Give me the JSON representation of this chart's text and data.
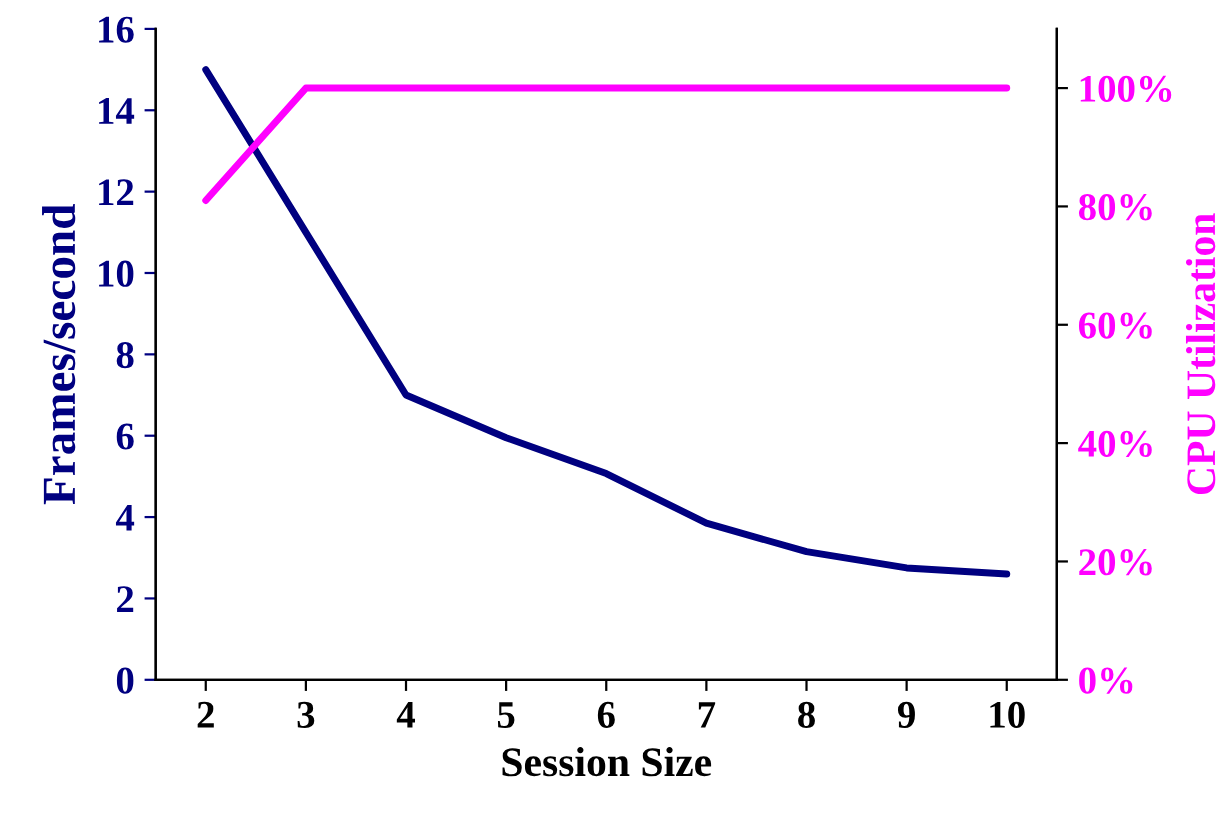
{
  "chart_data": {
    "type": "line",
    "xlabel": "Session Size",
    "ylabel": "Frames/second",
    "y2label": "CPU Utilization",
    "categories": [
      "2",
      "3",
      "4",
      "5",
      "6",
      "7",
      "8",
      "9",
      "10"
    ],
    "series": [
      {
        "color": "#000080",
        "values": [
          15.0,
          11.0,
          7.0,
          5.95,
          5.07,
          3.85,
          3.15,
          2.75,
          2.6
        ]
      },
      {
        "color": "#ff00ff",
        "axis": "y2",
        "values": [
          81,
          100,
          100,
          100,
          100,
          100,
          100,
          100,
          100
        ]
      }
    ],
    "ylim": [
      0,
      16
    ],
    "yticks": [
      0,
      2,
      4,
      6,
      8,
      10,
      12,
      14,
      16
    ],
    "y2lim": [
      0,
      110
    ],
    "y2ticks": [
      {
        "value": 0,
        "label": "0%"
      },
      {
        "value": 20,
        "label": "20%"
      },
      {
        "value": 40,
        "label": "40%"
      },
      {
        "value": 60,
        "label": "60%"
      },
      {
        "value": 80,
        "label": "80%"
      },
      {
        "value": 100,
        "label": "100%"
      }
    ],
    "grid": false,
    "legend": false,
    "marker": "none",
    "line_style": "solid"
  }
}
